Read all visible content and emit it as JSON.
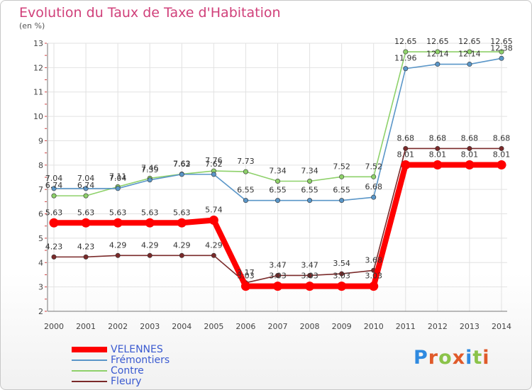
{
  "header": {
    "title": "Evolution du Taux de Taxe d'Habitation",
    "subtitle": "(en %)"
  },
  "logo": {
    "text": "Proxiti"
  },
  "chart_data": {
    "type": "line",
    "title": "Evolution du Taux de Taxe d'Habitation",
    "ylabel": "(en %)",
    "xlabel": "",
    "x": [
      "2000",
      "2001",
      "2002",
      "2003",
      "2004",
      "2005",
      "2006",
      "2007",
      "2008",
      "2009",
      "2010",
      "2011",
      "2012",
      "2013",
      "2014"
    ],
    "ylim": [
      2,
      13
    ],
    "yticks": [
      "2",
      "3",
      "4",
      "5",
      "6",
      "7",
      "8",
      "9",
      "10",
      "11",
      "12",
      "13"
    ],
    "grid": true,
    "legend_position": "bottom-left",
    "series": [
      {
        "name": "VELENNES",
        "color": "#ff0000",
        "values": [
          5.63,
          5.63,
          5.63,
          5.63,
          5.63,
          5.74,
          3.03,
          3.03,
          3.03,
          3.03,
          3.03,
          8.01,
          8.01,
          8.01,
          8.01
        ],
        "labels": [
          "5.63",
          "5.63",
          "5.63",
          "5.63",
          "5.63",
          "5.74",
          "3.03",
          "3.03",
          "3.03",
          "3.03",
          "3.03",
          "8.01",
          "8.01",
          "8.01",
          "8.01"
        ]
      },
      {
        "name": "Frémontiers",
        "color": "#5a96c8",
        "values": [
          7.04,
          7.04,
          7.04,
          7.39,
          7.62,
          7.62,
          6.55,
          6.55,
          6.55,
          6.55,
          6.68,
          11.96,
          12.14,
          12.14,
          12.38
        ],
        "labels": [
          "7.04",
          "7.04",
          "7.04",
          "7.39",
          "7.62",
          "7.62",
          "6.55",
          "6.55",
          "6.55",
          "6.55",
          "6.68",
          "11.96",
          "12.14",
          "12.14",
          "12.38"
        ]
      },
      {
        "name": "Contre",
        "color": "#8ed16a",
        "values": [
          6.74,
          6.74,
          7.11,
          7.46,
          7.63,
          7.76,
          7.73,
          7.34,
          7.34,
          7.52,
          7.52,
          12.65,
          12.65,
          12.65,
          12.65
        ],
        "labels": [
          "6.74",
          "6.74",
          "7.11",
          "7.46",
          "7.63",
          "7.76",
          "7.73",
          "7.34",
          "7.34",
          "7.52",
          "7.52",
          "12.65",
          "12.65",
          "12.65",
          "12.65"
        ]
      },
      {
        "name": "Fleury",
        "color": "#7a2a2a",
        "values": [
          4.23,
          4.23,
          4.29,
          4.29,
          4.29,
          4.29,
          3.17,
          3.47,
          3.47,
          3.54,
          3.68,
          8.68,
          8.68,
          8.68,
          8.68
        ],
        "labels": [
          "4.23",
          "4.23",
          "4.29",
          "4.29",
          "4.29",
          "4.29",
          "3.17",
          "3.47",
          "3.47",
          "3.54",
          "3.68",
          "8.68",
          "8.68",
          "8.68",
          "8.68"
        ]
      }
    ]
  }
}
